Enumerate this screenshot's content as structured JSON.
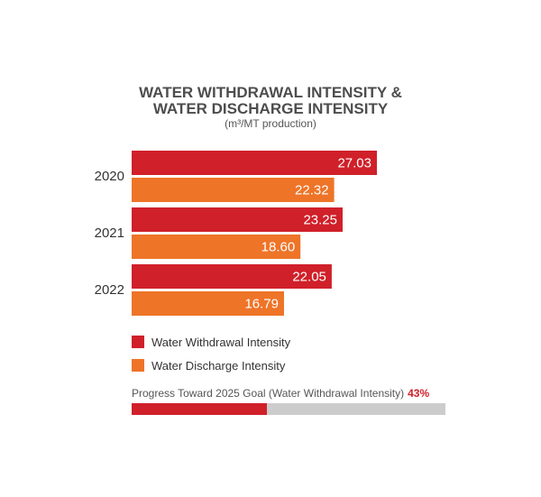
{
  "chart_data": {
    "type": "bar",
    "orientation": "horizontal",
    "title_line1": "WATER WITHDRAWAL INTENSITY &",
    "title_line2": "WATER DISCHARGE INTENSITY",
    "subtitle": "(m³/MT production)",
    "categories": [
      "2020",
      "2021",
      "2022"
    ],
    "series": [
      {
        "name": "Water Withdrawal Intensity",
        "values": [
          27.03,
          23.25,
          22.05
        ],
        "labels": [
          "27.03",
          "23.25",
          "22.05"
        ],
        "color": "#d0202a"
      },
      {
        "name": "Water Discharge Intensity",
        "values": [
          22.32,
          18.6,
          16.79
        ],
        "labels": [
          "22.32",
          "18.60",
          "16.79"
        ],
        "color": "#ee7428"
      }
    ],
    "xlim": [
      0,
      35
    ]
  },
  "progress": {
    "label": "Progress Toward 2025 Goal (Water Withdrawal Intensity)",
    "percent_label": "43%",
    "value": 0.43,
    "fill_color": "#d0202a",
    "track_color": "#cccccc"
  }
}
